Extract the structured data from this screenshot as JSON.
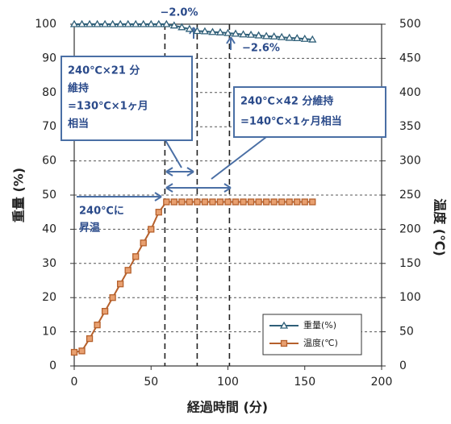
{
  "chart_data": {
    "type": "line",
    "x_label": "経過時間 (分)",
    "y_label": "重量 (%)",
    "y2_label": "温度 (℃)",
    "x": [
      0,
      5,
      10,
      15,
      20,
      25,
      30,
      35,
      40,
      45,
      50,
      55,
      60,
      65,
      70,
      75,
      80,
      85,
      90,
      95,
      100,
      105,
      110,
      115,
      120,
      125,
      130,
      135,
      140,
      145,
      150,
      155
    ],
    "series": [
      {
        "name": "重量(%)",
        "color": "#2f5f78",
        "marker": "triangle",
        "values": [
          100,
          100,
          100,
          100,
          100,
          100,
          100,
          100,
          100,
          100,
          100,
          100,
          100,
          99.6,
          99.1,
          98.6,
          98.0,
          97.9,
          97.7,
          97.6,
          97.4,
          97.2,
          97.0,
          96.9,
          96.7,
          96.5,
          96.4,
          96.2,
          96.0,
          95.9,
          95.7,
          95.5
        ]
      },
      {
        "name": "温度(℃)",
        "color": "#b5602c",
        "marker": "square",
        "axis": "y2",
        "values": [
          20,
          22,
          40,
          60,
          80,
          100,
          120,
          140,
          160,
          180,
          200,
          225,
          240,
          240,
          240,
          240,
          240,
          240,
          240,
          240,
          240,
          240,
          240,
          240,
          240,
          240,
          240,
          240,
          240,
          240,
          240,
          240
        ]
      }
    ],
    "xlim": [
      0,
      200
    ],
    "xticks": [
      0,
      50,
      100,
      150,
      200
    ],
    "ylim": [
      0,
      100
    ],
    "yticks": [
      0,
      10,
      20,
      30,
      40,
      50,
      60,
      70,
      80,
      90,
      100
    ],
    "y2lim": [
      0,
      500
    ],
    "y2ticks": [
      0,
      50,
      100,
      150,
      200,
      250,
      300,
      350,
      400,
      450,
      500
    ],
    "grid": true,
    "reference_lines_x": [
      59,
      80,
      101
    ],
    "legend": "lower right",
    "annotations": [
      {
        "lines": [
          "−2.0%"
        ]
      },
      {
        "lines": [
          "−2.6%"
        ]
      },
      {
        "lines": [
          "240℃×21 分",
          "維持",
          "=130℃×1ヶ月",
          "相当"
        ]
      },
      {
        "lines": [
          "240℃×42 分維持",
          "=140℃×1ヶ月相当"
        ]
      },
      {
        "lines": [
          "240℃に",
          "昇温"
        ]
      }
    ]
  }
}
